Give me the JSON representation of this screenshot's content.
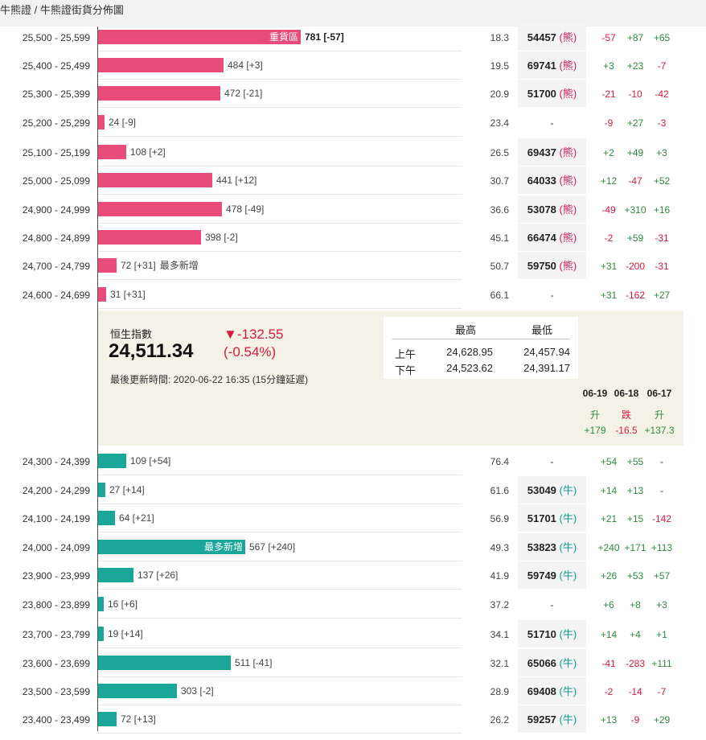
{
  "breadcrumb": "牛熊證 / 牛熊證街貨分佈圖",
  "bear_rows": [
    {
      "range": "25,500 - 25,599",
      "count": "781 [-57]",
      "inner_label": "重貨區",
      "bold": true,
      "pct": "18.3",
      "code": "54457",
      "type": "熊",
      "changes": [
        "-57",
        "+87",
        "+65"
      ]
    },
    {
      "range": "25,400 - 25,499",
      "count": "484 [+3]",
      "pct": "19.5",
      "code": "69741",
      "type": "熊",
      "changes": [
        "+3",
        "+23",
        "-7"
      ]
    },
    {
      "range": "25,300 - 25,399",
      "count": "472 [-21]",
      "pct": "20.9",
      "code": "51700",
      "type": "熊",
      "changes": [
        "-21",
        "-10",
        "-42"
      ]
    },
    {
      "range": "25,200 - 25,299",
      "count": "24 [-9]",
      "pct": "23.4",
      "code": "-",
      "type": "",
      "changes": [
        "-9",
        "+27",
        "-3"
      ]
    },
    {
      "range": "25,100 - 25,199",
      "count": "108 [+2]",
      "pct": "26.5",
      "code": "69437",
      "type": "熊",
      "changes": [
        "+2",
        "+49",
        "+3"
      ]
    },
    {
      "range": "25,000 - 25,099",
      "count": "441 [+12]",
      "pct": "30.7",
      "code": "64033",
      "type": "熊",
      "changes": [
        "+12",
        "-47",
        "+52"
      ]
    },
    {
      "range": "24,900 - 24,999",
      "count": "478 [-49]",
      "pct": "36.6",
      "code": "53078",
      "type": "熊",
      "changes": [
        "-49",
        "+310",
        "+16"
      ]
    },
    {
      "range": "24,800 - 24,899",
      "count": "398 [-2]",
      "pct": "45.1",
      "code": "66474",
      "type": "熊",
      "changes": [
        "-2",
        "+59",
        "-31"
      ]
    },
    {
      "range": "24,700 - 24,799",
      "count": "72 [+31]",
      "extra": "最多新增",
      "pct": "50.7",
      "code": "59750",
      "type": "熊",
      "changes": [
        "+31",
        "-200",
        "-31"
      ]
    },
    {
      "range": "24,600 - 24,699",
      "count": "31 [+31]",
      "pct": "66.1",
      "code": "-",
      "type": "",
      "changes": [
        "+31",
        "-162",
        "+27"
      ]
    }
  ],
  "bear_values": [
    781,
    484,
    472,
    24,
    108,
    441,
    478,
    398,
    72,
    31
  ],
  "index": {
    "label": "恒生指數",
    "value": "24,511.34",
    "change": "▼-132.55",
    "change_pct": "(-0.54%)",
    "updated": "最後更新時間: 2020-06-22 16:35 (15分鐘延遲)",
    "high_header": "最高",
    "low_header": "最低",
    "am_label": "上午",
    "pm_label": "下午",
    "am_high": "24,628.95",
    "am_low": "24,457.94",
    "pm_high": "24,523.62",
    "pm_low": "24,391.17",
    "days": [
      {
        "date": "06-19",
        "dir": "升",
        "val": "+179"
      },
      {
        "date": "06-18",
        "dir": "跌",
        "val": "-16.5"
      },
      {
        "date": "06-17",
        "dir": "升",
        "val": "+137.3"
      }
    ]
  },
  "bull_rows": [
    {
      "range": "24,300 - 24,399",
      "count": "109 [+54]",
      "pct": "76.4",
      "code": "-",
      "type": "",
      "changes": [
        "+54",
        "+55",
        "-"
      ]
    },
    {
      "range": "24,200 - 24,299",
      "count": "27 [+14]",
      "pct": "61.6",
      "code": "53049",
      "type": "牛",
      "changes": [
        "+14",
        "+13",
        "-"
      ]
    },
    {
      "range": "24,100 - 24,199",
      "count": "64 [+21]",
      "pct": "56.9",
      "code": "51701",
      "type": "牛",
      "changes": [
        "+21",
        "+15",
        "-142"
      ]
    },
    {
      "range": "24,000 - 24,099",
      "count": "567 [+240]",
      "inner_label": "最多新增",
      "pct": "49.3",
      "code": "53823",
      "type": "牛",
      "changes": [
        "+240",
        "+171",
        "+113"
      ]
    },
    {
      "range": "23,900 - 23,999",
      "count": "137 [+26]",
      "pct": "41.9",
      "code": "59749",
      "type": "牛",
      "changes": [
        "+26",
        "+53",
        "+57"
      ]
    },
    {
      "range": "23,800 - 23,899",
      "count": "16 [+6]",
      "pct": "37.2",
      "code": "-",
      "type": "",
      "changes": [
        "+6",
        "+8",
        "+3"
      ]
    },
    {
      "range": "23,700 - 23,799",
      "count": "19 [+14]",
      "pct": "34.1",
      "code": "51710",
      "type": "牛",
      "changes": [
        "+14",
        "+4",
        "+1"
      ]
    },
    {
      "range": "23,600 - 23,699",
      "count": "511 [-41]",
      "pct": "32.1",
      "code": "65066",
      "type": "牛",
      "changes": [
        "-41",
        "-283",
        "+111"
      ]
    },
    {
      "range": "23,500 - 23,599",
      "count": "303 [-2]",
      "pct": "28.9",
      "code": "69408",
      "type": "牛",
      "changes": [
        "-2",
        "-14",
        "-7"
      ]
    },
    {
      "range": "23,400 - 23,499",
      "count": "72 [+13]",
      "pct": "26.2",
      "code": "59257",
      "type": "牛",
      "changes": [
        "+13",
        "-9",
        "+29"
      ]
    }
  ],
  "bull_values": [
    109,
    27,
    64,
    567,
    137,
    16,
    19,
    511,
    303,
    72
  ],
  "colors": {
    "bear": "#e94b7b",
    "bull": "#1aa79a",
    "up": "#2e8b3e",
    "down": "#d81b3c"
  }
}
